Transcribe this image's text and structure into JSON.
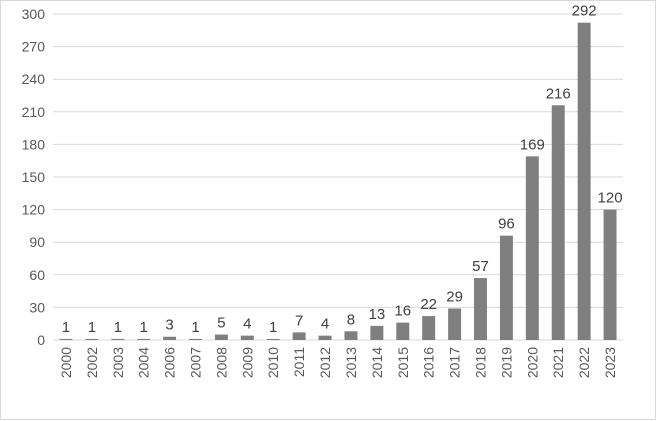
{
  "chart_data": {
    "type": "bar",
    "title": "",
    "xlabel": "",
    "ylabel": "",
    "categories": [
      "2000",
      "2002",
      "2003",
      "2004",
      "2006",
      "2007",
      "2008",
      "2009",
      "2010",
      "2011",
      "2012",
      "2013",
      "2014",
      "2015",
      "2016",
      "2017",
      "2018",
      "2019",
      "2020",
      "2021",
      "2022",
      "2023"
    ],
    "values": [
      1,
      1,
      1,
      1,
      3,
      1,
      5,
      4,
      1,
      7,
      4,
      8,
      13,
      16,
      22,
      29,
      57,
      96,
      169,
      216,
      292,
      120
    ],
    "ylim": [
      0,
      300
    ],
    "yticks": [
      0,
      30,
      60,
      90,
      120,
      150,
      180,
      210,
      240,
      270,
      300
    ],
    "grid": true,
    "data_labels": true,
    "legend": "none",
    "bar_color": "#7f7f7f",
    "grid_color": "#d9d9d9",
    "text_color": "#595959"
  }
}
